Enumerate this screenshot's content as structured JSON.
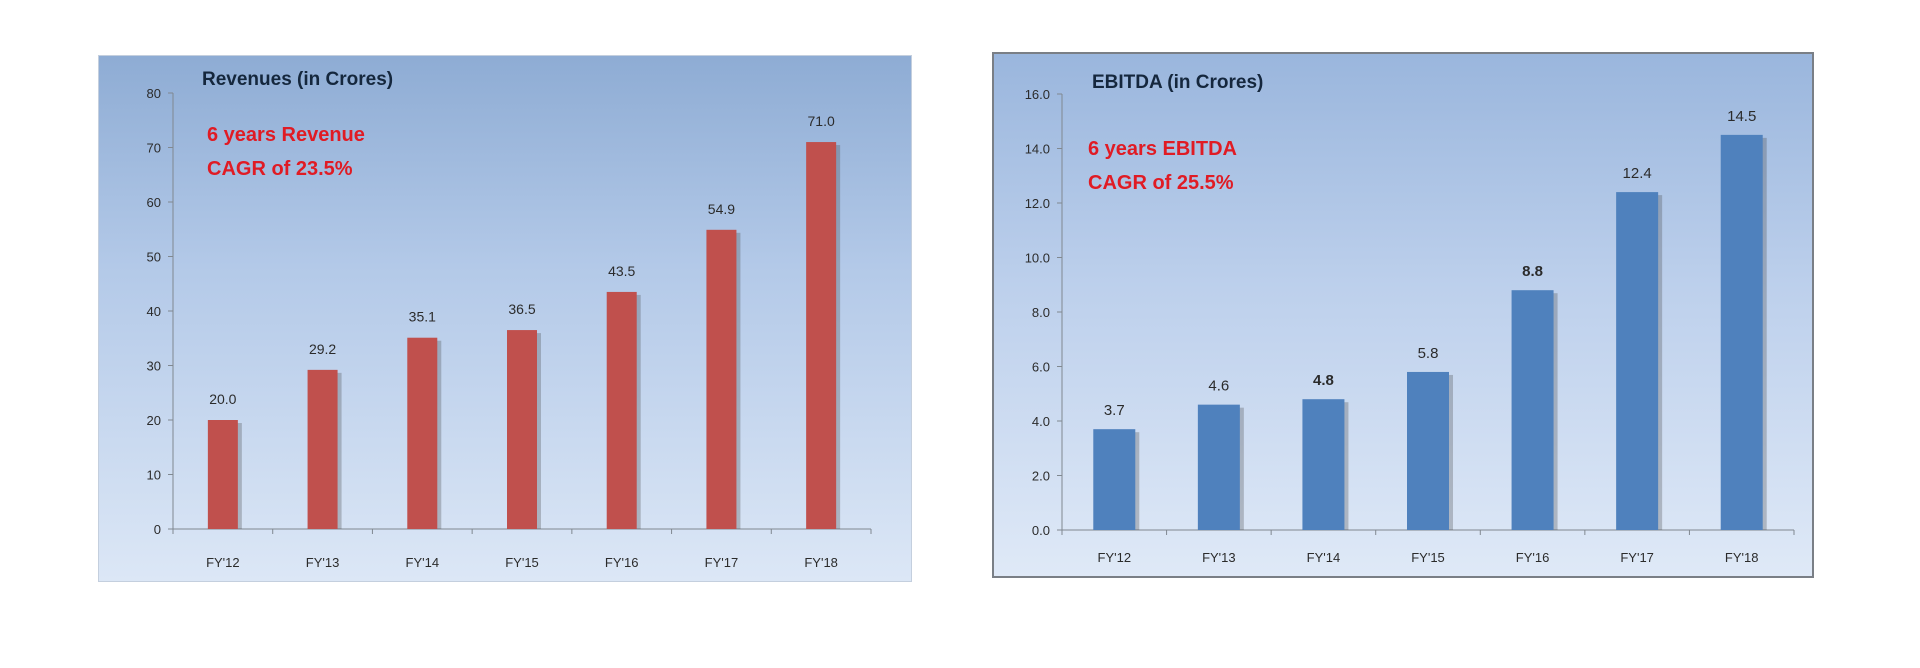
{
  "chart_data": [
    {
      "type": "bar",
      "title": "Revenues (in Crores)",
      "annotation": [
        "6 years Revenue",
        "CAGR of 23.5%"
      ],
      "categories": [
        "FY'12",
        "FY'13",
        "FY'14",
        "FY'15",
        "FY'16",
        "FY'17",
        "FY'18"
      ],
      "values": [
        20.0,
        29.2,
        35.1,
        36.5,
        43.5,
        54.9,
        71.0
      ],
      "data_labels": [
        "20.0",
        "29.2",
        "35.1",
        "36.5",
        "43.5",
        "54.9",
        "71.0"
      ],
      "ylim": [
        0,
        80
      ],
      "yticks": [
        "0",
        "10",
        "20",
        "30",
        "40",
        "50",
        "60",
        "70",
        "80"
      ],
      "xlabel": "",
      "ylabel": "",
      "bar_color": "#c0504d",
      "grid": false
    },
    {
      "type": "bar",
      "title": "EBITDA (in Crores)",
      "annotation": [
        "6 years EBITDA",
        "CAGR of 25.5%"
      ],
      "categories": [
        "FY'12",
        "FY'13",
        "FY'14",
        "FY'15",
        "FY'16",
        "FY'17",
        "FY'18"
      ],
      "values": [
        3.7,
        4.6,
        4.8,
        5.8,
        8.8,
        12.4,
        14.5
      ],
      "data_labels": [
        "3.7",
        "4.6",
        "4.8",
        "5.8",
        "8.8",
        "12.4",
        "14.5"
      ],
      "ylim": [
        0,
        16
      ],
      "yticks": [
        "0.0",
        "2.0",
        "4.0",
        "6.0",
        "8.0",
        "10.0",
        "12.0",
        "14.0",
        "16.0"
      ],
      "xlabel": "",
      "ylabel": "",
      "bar_color": "#4f81bd",
      "grid": false
    }
  ]
}
